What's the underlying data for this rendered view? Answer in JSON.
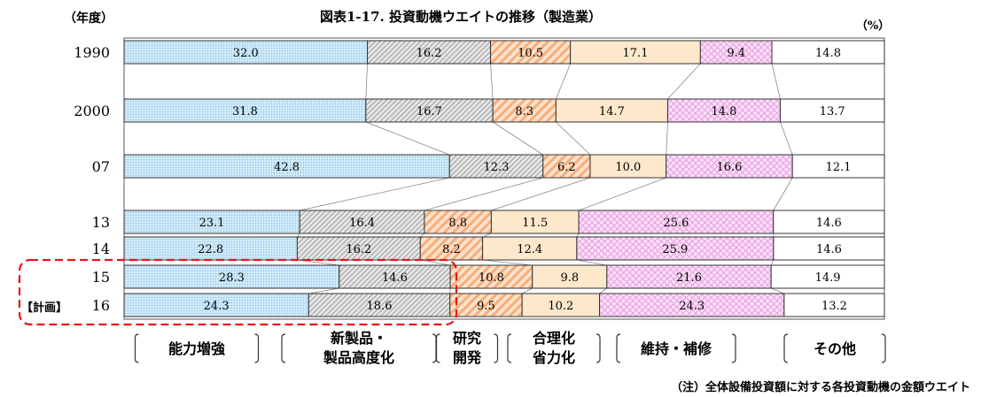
{
  "chart_data": {
    "type": "bar",
    "orientation": "horizontal",
    "stacked": true,
    "title": "図表1-17. 投資動機ウエイトの推移（製造業）",
    "ylabel": "（年度）",
    "unit": "（%）",
    "plan_label": "【計画】",
    "note": "（注）全体設備投資額に対する各投資動機の金額ウエイト",
    "categories": [
      "1990",
      "2000",
      "07",
      "13",
      "14",
      "15",
      "16"
    ],
    "planned_categories": [
      "15",
      "16"
    ],
    "xlim": [
      0,
      100
    ],
    "series": [
      {
        "name": "能力増強",
        "values": [
          32.0,
          31.8,
          42.8,
          23.1,
          22.8,
          28.3,
          24.3
        ],
        "color": "#cde9f9"
      },
      {
        "name": "新製品・製品高度化",
        "values": [
          16.2,
          16.7,
          12.3,
          16.4,
          16.2,
          14.6,
          18.6
        ],
        "color": "#dedede"
      },
      {
        "name": "研究開発",
        "values": [
          10.5,
          8.3,
          6.2,
          8.8,
          8.2,
          10.8,
          9.5
        ],
        "color": "#fcc49a"
      },
      {
        "name": "合理化省力化",
        "values": [
          17.1,
          14.7,
          10.0,
          11.5,
          12.4,
          9.8,
          10.2
        ],
        "color": "#fde8cc"
      },
      {
        "name": "維持・補修",
        "values": [
          9.4,
          14.8,
          16.6,
          25.6,
          25.9,
          21.6,
          24.3
        ],
        "color": "#f9cdf4"
      },
      {
        "name": "その他",
        "values": [
          14.8,
          13.7,
          12.1,
          14.6,
          14.6,
          14.9,
          13.2
        ],
        "color": "#ffffff"
      }
    ],
    "legend": [
      {
        "lines": [
          "能力増強"
        ]
      },
      {
        "lines": [
          "新製品・",
          "製品高度化"
        ]
      },
      {
        "lines": [
          "研究",
          "開発"
        ]
      },
      {
        "lines": [
          "合理化",
          "省力化"
        ]
      },
      {
        "lines": [
          "維持・補修"
        ]
      },
      {
        "lines": [
          "その他"
        ]
      }
    ],
    "legend_placement": "bottom",
    "highlight_color": "#e8141a",
    "grid": false
  }
}
